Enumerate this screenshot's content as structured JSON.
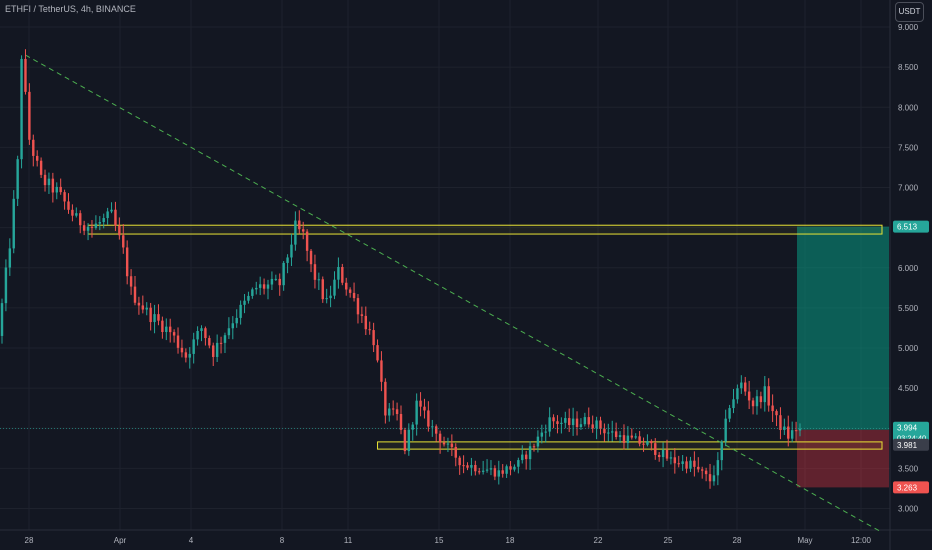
{
  "header": {
    "symbol": "ETHFI / TetherUS, 4h, BINANCE",
    "currency": "USDT"
  },
  "colors": {
    "background": "#131722",
    "grid": "#1e222d",
    "up": "#26a69a",
    "down": "#ef5350",
    "zone": "#e8e335",
    "trend": "#4caf50",
    "axis_text": "#b2b5be"
  },
  "chart_data": {
    "type": "candlestick",
    "ylim": [
      2.75,
      9.2
    ],
    "y_ticks": [
      3.0,
      3.5,
      4.0,
      4.5,
      5.0,
      5.5,
      6.0,
      6.5,
      7.0,
      7.5,
      8.0,
      8.5,
      9.0
    ],
    "y_tick_labels": [
      "3.000",
      "3.500",
      "4.000",
      "4.500",
      "5.000",
      "5.500",
      "6.000",
      "6.500",
      "7.000",
      "7.500",
      "8.000",
      "8.500",
      "9.000"
    ],
    "x_tick_labels": [
      "28",
      "Apr",
      "4",
      "8",
      "11",
      "15",
      "18",
      "22",
      "25",
      "28",
      "May",
      "12:00"
    ],
    "grid": true,
    "path_points": [
      {
        "t": 0,
        "p": 5.15
      },
      {
        "t": 3,
        "p": 6.3
      },
      {
        "t": 5,
        "p": 7.3
      },
      {
        "t": 6,
        "p": 8.65
      },
      {
        "t": 8,
        "p": 7.6
      },
      {
        "t": 11,
        "p": 7.1
      },
      {
        "t": 15,
        "p": 6.95
      },
      {
        "t": 20,
        "p": 6.6
      },
      {
        "t": 24,
        "p": 6.5
      },
      {
        "t": 29,
        "p": 6.65
      },
      {
        "t": 32,
        "p": 6.2
      },
      {
        "t": 34,
        "p": 5.7
      },
      {
        "t": 38,
        "p": 5.45
      },
      {
        "t": 44,
        "p": 5.2
      },
      {
        "t": 48,
        "p": 4.9
      },
      {
        "t": 52,
        "p": 5.25
      },
      {
        "t": 55,
        "p": 4.95
      },
      {
        "t": 60,
        "p": 5.35
      },
      {
        "t": 66,
        "p": 5.75
      },
      {
        "t": 72,
        "p": 5.8
      },
      {
        "t": 76,
        "p": 6.5
      },
      {
        "t": 78,
        "p": 6.4
      },
      {
        "t": 80,
        "p": 6.0
      },
      {
        "t": 84,
        "p": 5.55
      },
      {
        "t": 87,
        "p": 5.95
      },
      {
        "t": 91,
        "p": 5.6
      },
      {
        "t": 96,
        "p": 5.1
      },
      {
        "t": 99,
        "p": 4.2
      },
      {
        "t": 102,
        "p": 4.15
      },
      {
        "t": 104,
        "p": 3.75
      },
      {
        "t": 107,
        "p": 4.3
      },
      {
        "t": 111,
        "p": 4.0
      },
      {
        "t": 115,
        "p": 3.75
      },
      {
        "t": 119,
        "p": 3.55
      },
      {
        "t": 124,
        "p": 3.5
      },
      {
        "t": 128,
        "p": 3.45
      },
      {
        "t": 133,
        "p": 3.55
      },
      {
        "t": 137,
        "p": 3.8
      },
      {
        "t": 141,
        "p": 4.1
      },
      {
        "t": 146,
        "p": 4.05
      },
      {
        "t": 151,
        "p": 4.1
      },
      {
        "t": 156,
        "p": 3.95
      },
      {
        "t": 162,
        "p": 3.85
      },
      {
        "t": 166,
        "p": 3.8
      },
      {
        "t": 172,
        "p": 3.6
      },
      {
        "t": 177,
        "p": 3.55
      },
      {
        "t": 182,
        "p": 3.35
      },
      {
        "t": 184,
        "p": 3.55
      },
      {
        "t": 187,
        "p": 4.3
      },
      {
        "t": 190,
        "p": 4.55
      },
      {
        "t": 193,
        "p": 4.3
      },
      {
        "t": 196,
        "p": 4.45
      },
      {
        "t": 199,
        "p": 4.1
      },
      {
        "t": 202,
        "p": 3.9
      },
      {
        "t": 204,
        "p": 3.994
      }
    ],
    "candle_count": 205,
    "zones": [
      {
        "from_t": 22,
        "to_t": 225,
        "low": 6.42,
        "high": 6.53
      },
      {
        "from_t": 96,
        "to_t": 225,
        "low": 3.74,
        "high": 3.83
      }
    ],
    "trendline": {
      "t1": 6,
      "p1": 8.65,
      "t2": 224,
      "p2": 2.73
    },
    "position": {
      "from_t": 204,
      "to_t": 225,
      "entry": 3.981,
      "target": 6.513,
      "stop": 3.263
    },
    "price_labels": [
      {
        "value": "6.513",
        "color": "#26a69a"
      },
      {
        "value": "3.994",
        "sub": "03:24:40",
        "color": "#26a69a"
      },
      {
        "value": "3.981",
        "color": "#b2b5be"
      },
      {
        "value": "3.263",
        "color": "#ef5350"
      }
    ]
  }
}
